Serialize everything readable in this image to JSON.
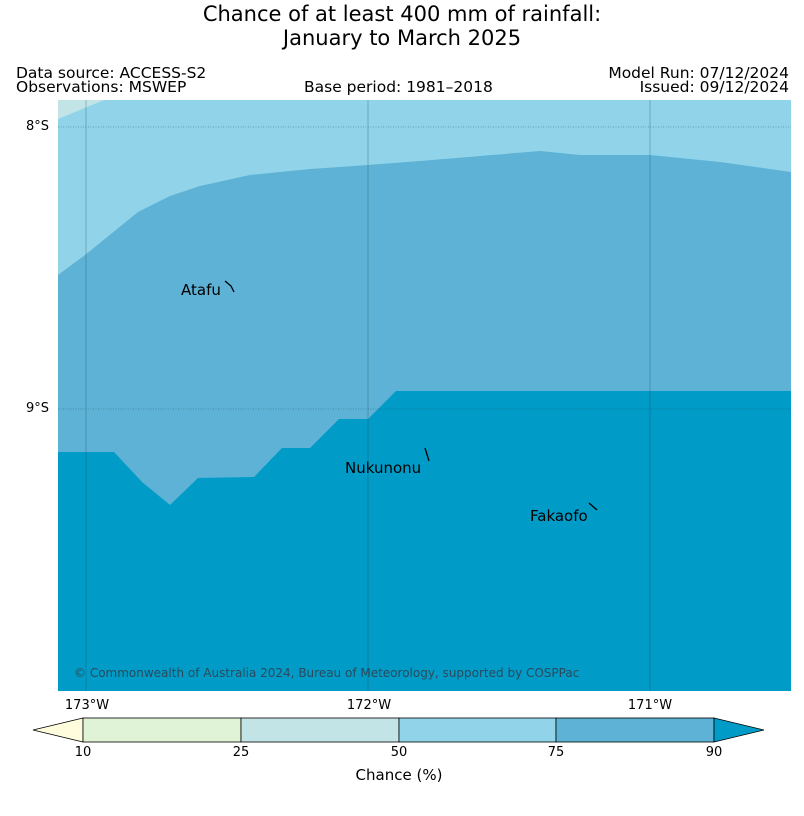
{
  "title": {
    "line1": "Chance of at least 400 mm of rainfall:",
    "line2": "January to March 2025"
  },
  "meta": {
    "data_source": "Data source: ACCESS-S2",
    "observations": "Observations: MSWEP",
    "base_period": "Base period: 1981–2018",
    "model_run": "Model Run: 07/12/2024",
    "issued": "Issued: 09/12/2024"
  },
  "map": {
    "lat_labels": [
      "8°S",
      "9°S"
    ],
    "lon_labels": [
      "173°W",
      "172°W",
      "171°W"
    ],
    "places": [
      "Atafu",
      "Nukunonu",
      "Fakaofo"
    ],
    "credit": "© Commonwealth of Australia 2024, Bureau of Meteorology, supported by COSPPac",
    "zone_colors": {
      "10-25": "#e0f3d6",
      "25-50": "#c3e4e6",
      "50-75": "#91d4e9",
      "75-90": "#5eb2d5",
      "90+": "#009bc6"
    }
  },
  "colorbar": {
    "ticks": [
      "10",
      "25",
      "50",
      "75",
      "90"
    ],
    "label": "Chance (%)",
    "colors": {
      "below_10": "#fefcdc",
      "10-25": "#e0f3d6",
      "25-50": "#c3e4e6",
      "50-75": "#91d4e9",
      "75-90": "#5eb2d5",
      "above_90": "#009bc6"
    }
  }
}
